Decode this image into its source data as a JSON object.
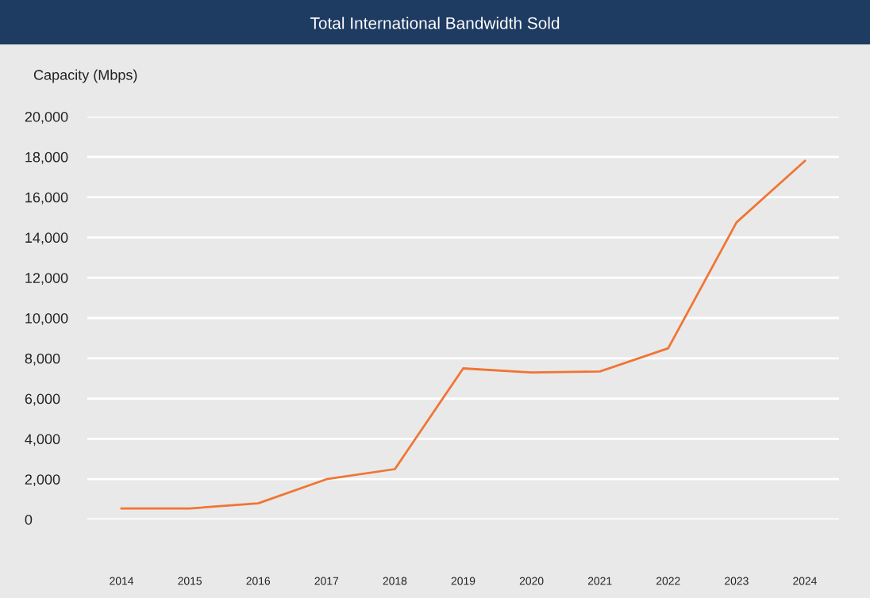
{
  "chart_data": {
    "type": "line",
    "title": "Total International Bandwidth Sold",
    "ylabel": "Capacity (Mbps)",
    "categories": [
      "2014",
      "2015",
      "2016",
      "2017",
      "2018",
      "2019",
      "2020",
      "2021",
      "2022",
      "2023",
      "2024"
    ],
    "series": [
      {
        "color": "#f07534",
        "values": [
          550,
          550,
          800,
          2000,
          2500,
          7500,
          7300,
          7350,
          8500,
          14750,
          17800
        ]
      }
    ],
    "ylim": [
      0,
      20000
    ],
    "yticks": [
      {
        "value": 0,
        "label": "0"
      },
      {
        "value": 2000,
        "label": "2,000"
      },
      {
        "value": 4000,
        "label": "4,000"
      },
      {
        "value": 6000,
        "label": "6,000"
      },
      {
        "value": 8000,
        "label": "8,000"
      },
      {
        "value": 10000,
        "label": "10,000"
      },
      {
        "value": 12000,
        "label": "12,000"
      },
      {
        "value": 14000,
        "label": "14,000"
      },
      {
        "value": 16000,
        "label": "16,000"
      },
      {
        "value": 18000,
        "label": "18,000"
      },
      {
        "value": 20000,
        "label": "20,000"
      }
    ],
    "grid": "y",
    "marker": "none",
    "line_style": "solid"
  }
}
